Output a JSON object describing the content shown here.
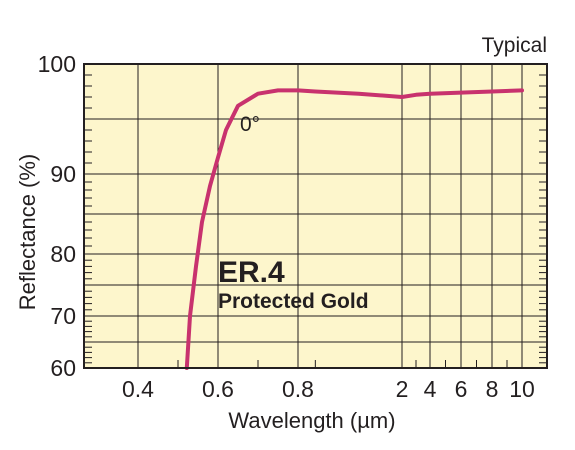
{
  "chart_data": {
    "type": "line",
    "note": "Typical",
    "xlabel": "Wavelength (µm)",
    "ylabel": "Reflectance (%)",
    "x_ticks": [
      "0.4",
      "0.6",
      "0.8",
      "2",
      "4",
      "6",
      "8",
      "10"
    ],
    "y_ticks": [
      "60",
      "70",
      "80",
      "90",
      "100"
    ],
    "ylim": [
      60,
      100
    ],
    "grid": true,
    "background": "#fdf6cc",
    "product_code": "ER.4",
    "product_name": "Protected Gold",
    "series": [
      {
        "label": "0°",
        "color": "#c8326e",
        "points": [
          {
            "x": 0.522,
            "y": 60
          },
          {
            "x": 0.53,
            "y": 70
          },
          {
            "x": 0.545,
            "y": 78
          },
          {
            "x": 0.56,
            "y": 84
          },
          {
            "x": 0.58,
            "y": 88.5
          },
          {
            "x": 0.6,
            "y": 91.5
          },
          {
            "x": 0.62,
            "y": 94
          },
          {
            "x": 0.65,
            "y": 96.2
          },
          {
            "x": 0.7,
            "y": 97.3
          },
          {
            "x": 0.75,
            "y": 97.6
          },
          {
            "x": 0.8,
            "y": 97.6
          },
          {
            "x": 1.0,
            "y": 97.5
          },
          {
            "x": 1.5,
            "y": 97.3
          },
          {
            "x": 2,
            "y": 97.0
          },
          {
            "x": 3,
            "y": 97.2
          },
          {
            "x": 4,
            "y": 97.3
          },
          {
            "x": 6,
            "y": 97.4
          },
          {
            "x": 8,
            "y": 97.5
          },
          {
            "x": 10,
            "y": 97.6
          }
        ]
      }
    ]
  }
}
